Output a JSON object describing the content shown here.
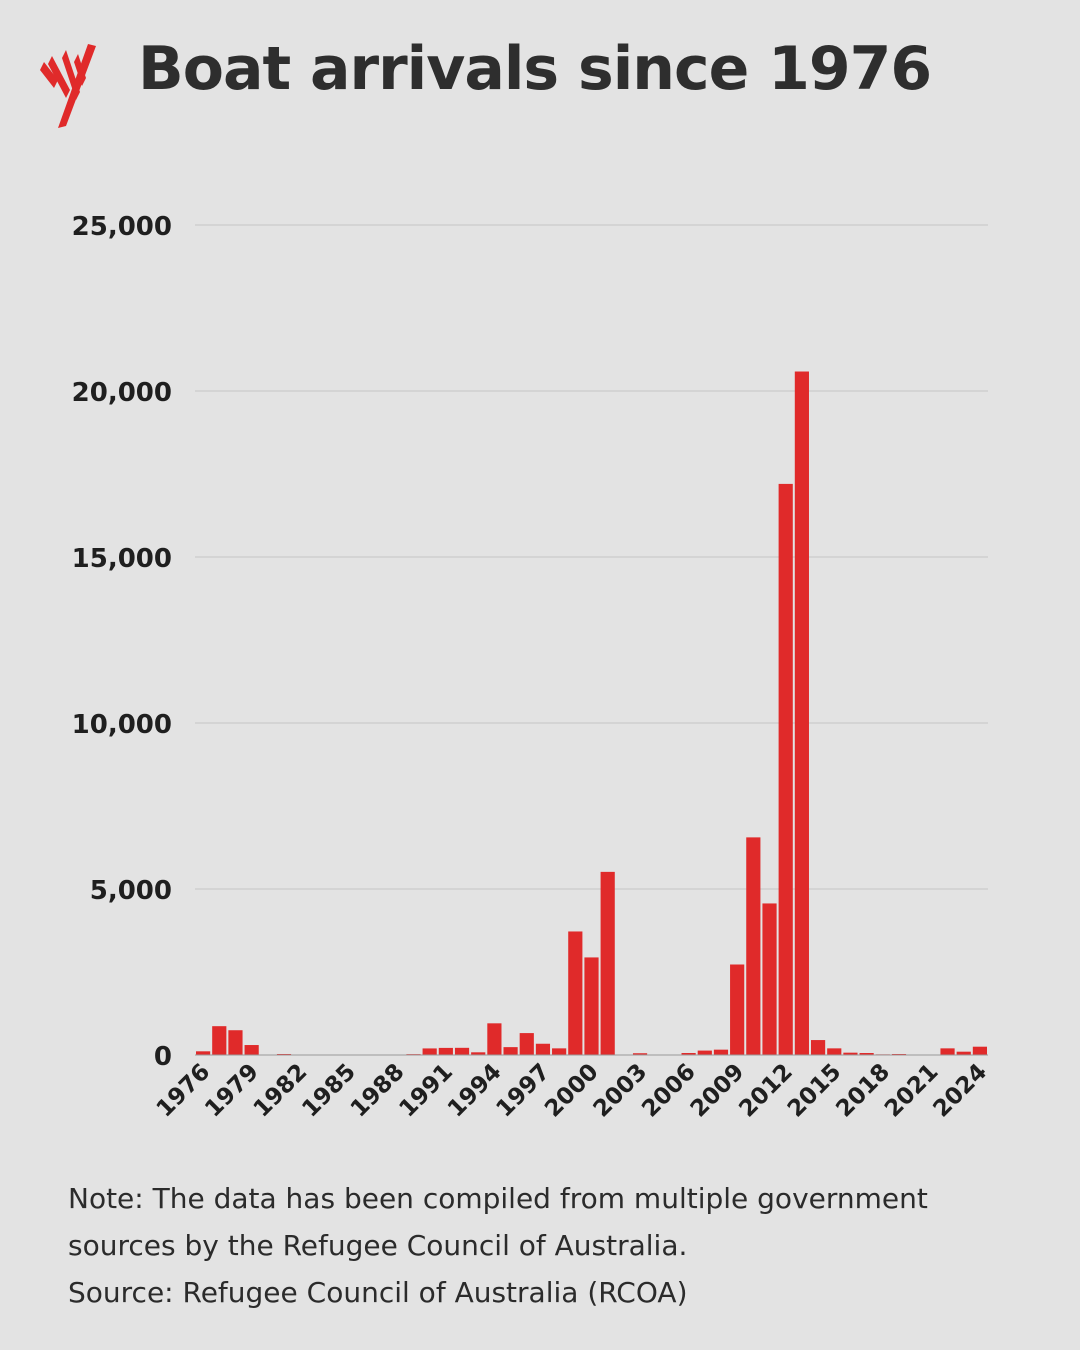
{
  "header": {
    "title": "Boat arrivals since 1976",
    "logo_name": "sbs-logo-icon"
  },
  "colors": {
    "background": "#e3e3e3",
    "bar": "#e02a2a",
    "grid": "#c4c4c4",
    "text": "#2b2b2b"
  },
  "chart_data": {
    "type": "bar",
    "title": "Boat arrivals since 1976",
    "xlabel": "",
    "ylabel": "",
    "ylim": [
      0,
      25000
    ],
    "grid": true,
    "y_ticks": [
      "0",
      "5,000",
      "10,000",
      "15,000",
      "20,000",
      "25,000"
    ],
    "y_tick_values": [
      0,
      5000,
      10000,
      15000,
      20000,
      25000
    ],
    "x_tick_labels": [
      "1976",
      "1979",
      "1982",
      "1985",
      "1988",
      "1991",
      "1994",
      "1997",
      "2000",
      "2003",
      "2006",
      "2009",
      "2012",
      "2015",
      "2018",
      "2021",
      "2024"
    ],
    "categories": [
      "1976",
      "1977",
      "1978",
      "1979",
      "1980",
      "1981",
      "1982",
      "1983",
      "1984",
      "1985",
      "1986",
      "1987",
      "1988",
      "1989",
      "1990",
      "1991",
      "1992",
      "1993",
      "1994",
      "1995",
      "1996",
      "1997",
      "1998",
      "1999",
      "2000",
      "2001",
      "2002",
      "2003",
      "2004",
      "2005",
      "2006",
      "2007",
      "2008",
      "2009",
      "2010",
      "2011",
      "2012",
      "2013",
      "2014",
      "2015",
      "2016",
      "2017",
      "2018",
      "2019",
      "2020",
      "2021",
      "2022",
      "2023",
      "2024"
    ],
    "values": [
      111,
      868,
      746,
      300,
      0,
      30,
      0,
      0,
      0,
      0,
      0,
      0,
      0,
      26,
      198,
      214,
      216,
      81,
      954,
      237,
      660,
      339,
      200,
      3721,
      2939,
      5516,
      1,
      53,
      15,
      11,
      60,
      133,
      161,
      2726,
      6555,
      4565,
      17202,
      20587,
      450,
      200,
      70,
      60,
      20,
      30,
      0,
      0,
      200,
      100,
      250
    ]
  },
  "notes": {
    "line1": "Note: The data has been compiled from multiple government",
    "line2": "sources by the Refugee Council of Australia.",
    "line3": "Source: Refugee Council of Australia (RCOA)"
  }
}
